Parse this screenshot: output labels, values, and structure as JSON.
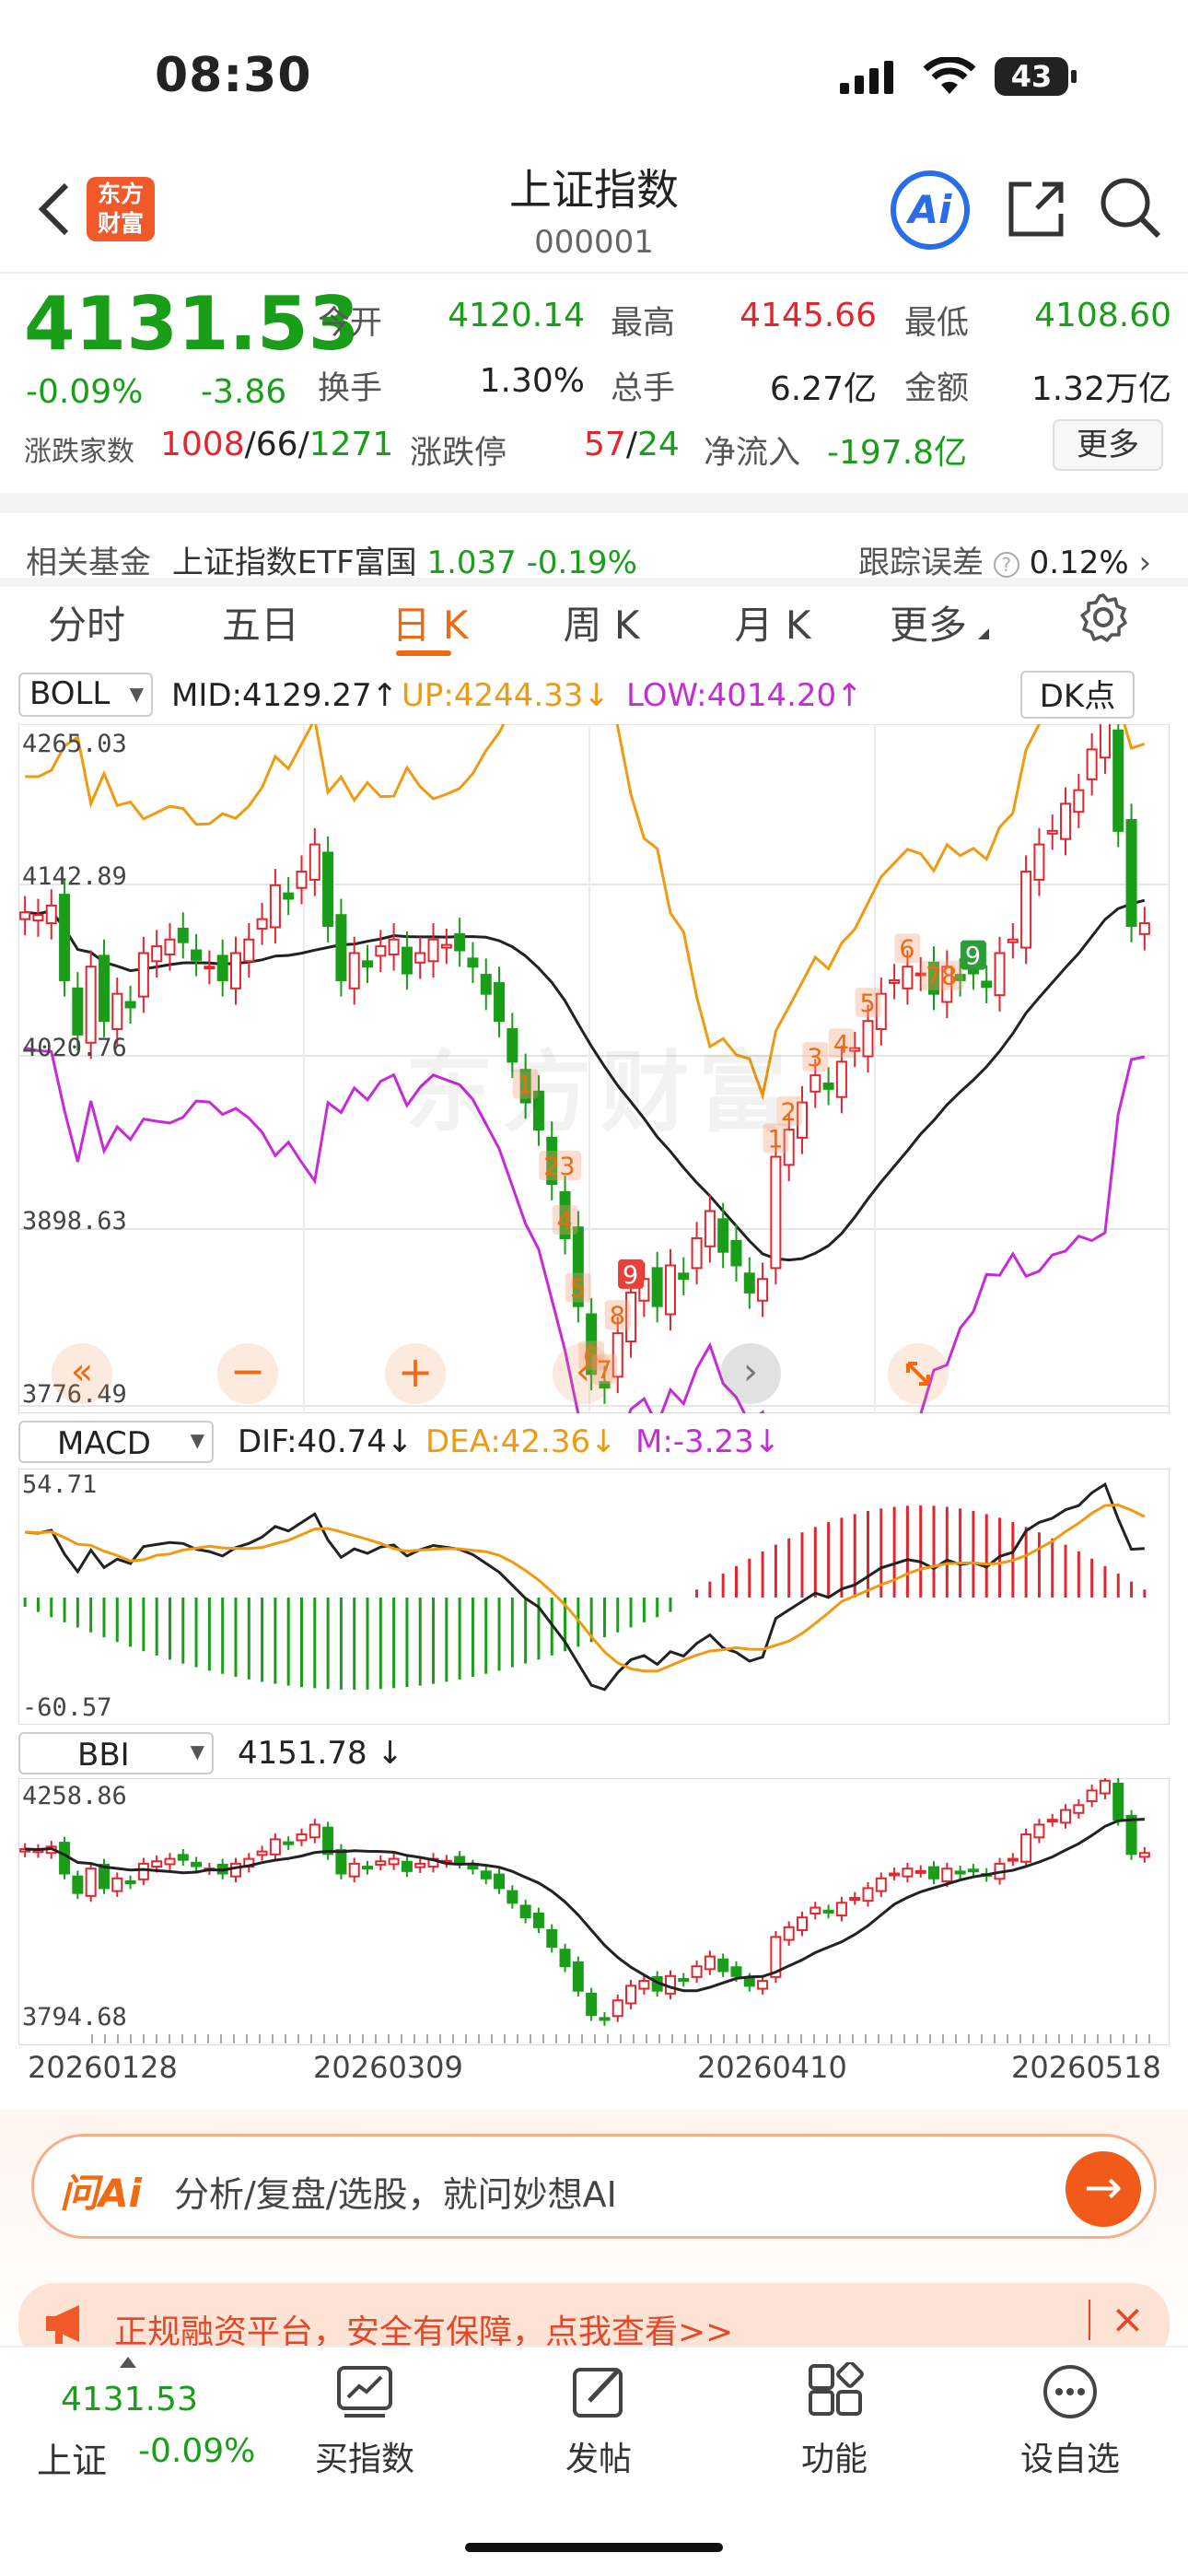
{
  "status": {
    "time": "08:30",
    "battery": "43"
  },
  "header": {
    "title": "上证指数",
    "code": "000001",
    "logo_line1": "东方",
    "logo_line2": "财富",
    "ai_label": "Ai"
  },
  "quote": {
    "price": "4131.53",
    "change_pct": "-0.09%",
    "change": "-3.86",
    "open_label": "今开",
    "open": "4120.14",
    "high_label": "最高",
    "high": "4145.66",
    "low_label": "最低",
    "low": "4108.60",
    "turnover_label": "换手",
    "turnover": "1.30%",
    "volume_label": "总手",
    "volume": "6.27亿",
    "amount_label": "金额",
    "amount": "1.32万亿",
    "adv_label": "涨跌家数",
    "adv_up": "1008",
    "adv_sep1": "/",
    "adv_flat": "66",
    "adv_sep2": "/",
    "adv_down": "1271",
    "limit_label": "涨跌停",
    "limit_up": "57",
    "limit_sep": "/",
    "limit_down": "24",
    "netflow_label": "净流入",
    "netflow": "-197.8亿",
    "more_label": "更多"
  },
  "fund": {
    "label": "相关基金",
    "name": "上证指数ETF富国",
    "price": "1.037",
    "change": "-0.19%",
    "track_label": "跟踪误差",
    "track_value": "0.12%"
  },
  "tabs": [
    {
      "label": "分时"
    },
    {
      "label": "五日"
    },
    {
      "label": "日 K"
    },
    {
      "label": "周 K"
    },
    {
      "label": "月 K"
    },
    {
      "label": "更多"
    }
  ],
  "main_chart": {
    "indicator": "BOLL",
    "mid": "MID:4129.27",
    "up": "UP:4244.33",
    "low": "LOW:4014.20",
    "dk_label": "DK点",
    "y_labels": [
      "4265.03",
      "4142.89",
      "4020.76",
      "3898.63",
      "3776.49"
    ],
    "watermark": "东方财富",
    "seq_labels": [
      "1",
      "23",
      "4",
      "5",
      "6",
      "7",
      "8",
      "9",
      "1",
      "2",
      "3",
      "4",
      "5",
      "6",
      "78",
      "9"
    ]
  },
  "macd": {
    "indicator": "MACD",
    "dif": "DIF:40.74",
    "dea": "DEA:42.36",
    "m": "M:-3.23",
    "y_max": "54.71",
    "y_min": "-60.57"
  },
  "bbi": {
    "indicator": "BBI",
    "value": "4151.78",
    "y_max": "4258.86",
    "y_min": "3794.68",
    "x_labels": [
      "20260128",
      "20260309",
      "20260410",
      "20260518"
    ]
  },
  "ai_bar": {
    "logo": "问Ai",
    "placeholder": "分析/复盘/选股，就问妙想AI"
  },
  "banner": {
    "text": "正规融资平台，安全有保障，点我查看>>"
  },
  "bottom_nav": {
    "index_price": "4131.53",
    "index_name": "上证",
    "index_change": "-0.09%",
    "items": [
      {
        "label": "买指数"
      },
      {
        "label": "发帖"
      },
      {
        "label": "功能"
      },
      {
        "label": "设自选"
      }
    ]
  },
  "colors": {
    "up": "#e2262e",
    "down": "#1a9e1a",
    "accent": "#f06a12",
    "boll_up": "#f09a12",
    "boll_low": "#c72bd8"
  }
}
